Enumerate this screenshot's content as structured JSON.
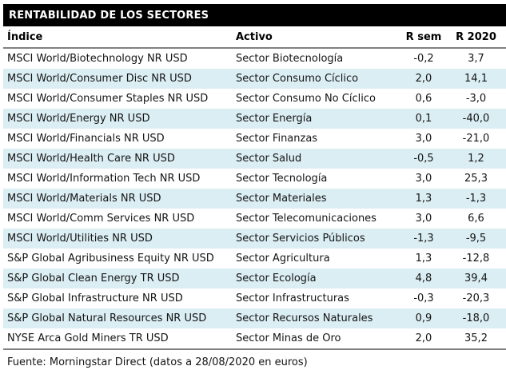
{
  "title": "RENTABILIDAD DE LOS SECTORES",
  "table": {
    "columns": [
      "Índice",
      "Activo",
      "R sem",
      "R 2020"
    ],
    "rows": [
      [
        "MSCI World/Biotechnology NR USD",
        "Sector Biotecnología",
        "-0,2",
        "3,7"
      ],
      [
        "MSCI World/Consumer Disc NR USD",
        "Sector Consumo Cíclico",
        "2,0",
        "14,1"
      ],
      [
        "MSCI World/Consumer Staples NR USD",
        "Sector Consumo No Cíclico",
        "0,6",
        "-3,0"
      ],
      [
        "MSCI World/Energy NR USD",
        "Sector Energía",
        "0,1",
        "-40,0"
      ],
      [
        "MSCI World/Financials NR USD",
        "Sector Finanzas",
        "3,0",
        "-21,0"
      ],
      [
        "MSCI World/Health Care NR USD",
        "Sector Salud",
        "-0,5",
        "1,2"
      ],
      [
        "MSCI World/Information Tech NR USD",
        "Sector Tecnología",
        "3,0",
        "25,3"
      ],
      [
        "MSCI World/Materials NR USD",
        "Sector Materiales",
        "1,3",
        "-1,3"
      ],
      [
        "MSCI World/Comm Services NR USD",
        "Sector Telecomunicaciones",
        "3,0",
        "6,6"
      ],
      [
        "MSCI World/Utilities NR USD",
        "Sector Servicios Públicos",
        "-1,3",
        "-9,5"
      ],
      [
        "S&P Global Agribusiness Equity NR USD",
        "Sector Agricultura",
        "1,3",
        "-12,8"
      ],
      [
        "S&P Global Clean Energy TR USD",
        "Sector Ecología",
        "4,8",
        "39,4"
      ],
      [
        "S&P Global Infrastructure NR USD",
        "Sector Infrastructuras",
        "-0,3",
        "-20,3"
      ],
      [
        "S&P Global Natural Resources NR USD",
        "Sector Recursos Naturales",
        "0,9",
        "-18,0"
      ],
      [
        "NYSE Arca Gold Miners TR USD",
        "Sector Minas de Oro",
        "2,0",
        "35,2"
      ]
    ]
  },
  "footer": "Fuente: Morningstar Direct (datos a 28/08/2020 en euros)",
  "colors": {
    "title_bg": "#000000",
    "title_text": "#ffffff",
    "row_alt_bg": "#dbeef4",
    "rule": "#808080",
    "text": "#141414"
  },
  "chart_data": {
    "type": "table",
    "title": "RENTABILIDAD DE LOS SECTORES",
    "columns": [
      "Índice",
      "Activo",
      "R sem",
      "R 2020"
    ],
    "rows": [
      {
        "indice": "MSCI World/Biotechnology NR USD",
        "activo": "Sector Biotecnología",
        "r_sem": -0.2,
        "r_2020": 3.7
      },
      {
        "indice": "MSCI World/Consumer Disc NR USD",
        "activo": "Sector Consumo Cíclico",
        "r_sem": 2.0,
        "r_2020": 14.1
      },
      {
        "indice": "MSCI World/Consumer Staples NR USD",
        "activo": "Sector Consumo No Cíclico",
        "r_sem": 0.6,
        "r_2020": -3.0
      },
      {
        "indice": "MSCI World/Energy NR USD",
        "activo": "Sector Energía",
        "r_sem": 0.1,
        "r_2020": -40.0
      },
      {
        "indice": "MSCI World/Financials NR USD",
        "activo": "Sector Finanzas",
        "r_sem": 3.0,
        "r_2020": -21.0
      },
      {
        "indice": "MSCI World/Health Care NR USD",
        "activo": "Sector Salud",
        "r_sem": -0.5,
        "r_2020": 1.2
      },
      {
        "indice": "MSCI World/Information Tech NR USD",
        "activo": "Sector Tecnología",
        "r_sem": 3.0,
        "r_2020": 25.3
      },
      {
        "indice": "MSCI World/Materials NR USD",
        "activo": "Sector Materiales",
        "r_sem": 1.3,
        "r_2020": -1.3
      },
      {
        "indice": "MSCI World/Comm Services NR USD",
        "activo": "Sector Telecomunicaciones",
        "r_sem": 3.0,
        "r_2020": 6.6
      },
      {
        "indice": "MSCI World/Utilities NR USD",
        "activo": "Sector Servicios Públicos",
        "r_sem": -1.3,
        "r_2020": -9.5
      },
      {
        "indice": "S&P Global Agribusiness Equity NR USD",
        "activo": "Sector Agricultura",
        "r_sem": 1.3,
        "r_2020": -12.8
      },
      {
        "indice": "S&P Global Clean Energy TR USD",
        "activo": "Sector Ecología",
        "r_sem": 4.8,
        "r_2020": 39.4
      },
      {
        "indice": "S&P Global Infrastructure NR USD",
        "activo": "Sector Infrastructuras",
        "r_sem": -0.3,
        "r_2020": -20.3
      },
      {
        "indice": "S&P Global Natural Resources NR USD",
        "activo": "Sector Recursos Naturales",
        "r_sem": 0.9,
        "r_2020": -18.0
      },
      {
        "indice": "NYSE Arca Gold Miners TR USD",
        "activo": "Sector Minas de Oro",
        "r_sem": 2.0,
        "r_2020": 35.2
      }
    ],
    "source": "Fuente: Morningstar Direct (datos a 28/08/2020 en euros)",
    "decimal_separator": ","
  }
}
